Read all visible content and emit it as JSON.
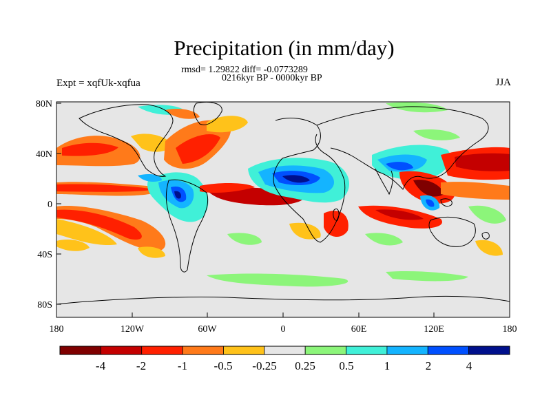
{
  "header": {
    "title": "Precipitation (in mm/day)",
    "stats": "rmsd= 1.29822 diff= -0.0773289",
    "period": "0216kyr BP - 0000kyr BP",
    "left_label": "Expt = xqfUk-xqfua",
    "right_label": "JJA"
  },
  "axes": {
    "lon_ticks": [
      "180",
      "120W",
      "60W",
      "0",
      "60E",
      "120E",
      "180"
    ],
    "lat_ticks": [
      "80N",
      "40N",
      "0",
      "40S",
      "80S"
    ]
  },
  "colorbar": {
    "labels": [
      "-4",
      "-2",
      "-1",
      "-0.5",
      "-0.25",
      "0.25",
      "0.5",
      "1",
      "2",
      "4"
    ],
    "colors": [
      "#7f0000",
      "#c40000",
      "#ff2000",
      "#ff7a1a",
      "#ffc21a",
      "#e6e6e6",
      "#8cf57a",
      "#40f0d8",
      "#14b4ff",
      "#0050ff",
      "#00108c"
    ]
  },
  "map": {
    "background": "#e6e6e6",
    "colors": {
      "strong_dry": "#7f0000",
      "dry2": "#c40000",
      "dry1": "#ff2000",
      "dry05": "#ff7a1a",
      "dry025": "#ffc21a",
      "wet025": "#8cf57a",
      "wet05": "#40f0d8",
      "wet1": "#14b4ff",
      "wet2": "#0050ff",
      "strong_wet": "#00108c"
    }
  }
}
